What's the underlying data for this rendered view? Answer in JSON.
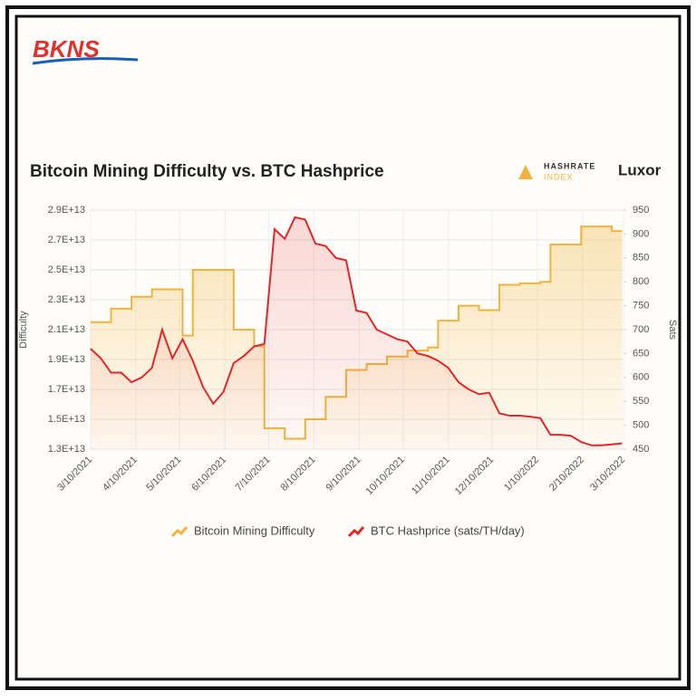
{
  "branding": {
    "logo": "BKNS",
    "partner_top": "HASHRATE",
    "partner_bottom": "INDEX",
    "partner2": "Luxor"
  },
  "chart_data": {
    "type": "line",
    "title": "Bitcoin Mining Difficulty vs. BTC Hashprice",
    "y_label": "Difficulty",
    "y2_label": "Sats",
    "x": [
      "3/10/2021",
      "3/17/2021",
      "3/24/2021",
      "3/31/2021",
      "4/7/2021",
      "4/14/2021",
      "4/21/2021",
      "4/28/2021",
      "5/5/2021",
      "5/12/2021",
      "5/19/2021",
      "5/26/2021",
      "6/2/2021",
      "6/9/2021",
      "6/16/2021",
      "6/23/2021",
      "6/30/2021",
      "7/7/2021",
      "7/14/2021",
      "7/21/2021",
      "7/28/2021",
      "8/4/2021",
      "8/11/2021",
      "8/18/2021",
      "8/25/2021",
      "9/1/2021",
      "9/8/2021",
      "9/15/2021",
      "9/22/2021",
      "9/29/2021",
      "10/6/2021",
      "10/13/2021",
      "10/20/2021",
      "10/27/2021",
      "11/3/2021",
      "11/10/2021",
      "11/17/2021",
      "11/24/2021",
      "12/1/2021",
      "12/8/2021",
      "12/15/2021",
      "12/22/2021",
      "12/29/2021",
      "1/5/2022",
      "1/12/2022",
      "1/19/2022",
      "1/26/2022",
      "2/2/2022",
      "2/9/2022",
      "2/16/2022",
      "2/23/2022",
      "3/2/2022",
      "3/9/2022"
    ],
    "xlim": [
      "3/10/2021",
      "3/10/2022"
    ],
    "xticks": [
      "3/10/2021",
      "4/10/2021",
      "5/10/2021",
      "6/10/2021",
      "7/10/2021",
      "8/10/2021",
      "9/10/2021",
      "10/10/2021",
      "11/10/2021",
      "12/10/2021",
      "1/10/2022",
      "2/10/2022",
      "3/10/2022"
    ],
    "ylim": [
      13000000000000.0,
      29000000000000.0
    ],
    "yticks": [
      {
        "value": 13000000000000.0,
        "label": "1.3E+13"
      },
      {
        "value": 15000000000000.0,
        "label": "1.5E+13"
      },
      {
        "value": 17000000000000.0,
        "label": "1.7E+13"
      },
      {
        "value": 19000000000000.0,
        "label": "1.9E+13"
      },
      {
        "value": 21000000000000.0,
        "label": "2.1E+13"
      },
      {
        "value": 23000000000000.0,
        "label": "2.3E+13"
      },
      {
        "value": 25000000000000.0,
        "label": "2.5E+13"
      },
      {
        "value": 27000000000000.0,
        "label": "2.7E+13"
      },
      {
        "value": 29000000000000.0,
        "label": "2.9E+13"
      }
    ],
    "y2lim": [
      450,
      950
    ],
    "y2ticks": [
      450,
      500,
      550,
      600,
      650,
      700,
      750,
      800,
      850,
      900,
      950
    ],
    "grid": true,
    "series": [
      {
        "name": "Bitcoin Mining Difficulty",
        "color": "#f0b43c",
        "step": true,
        "values": [
          21500000000000.0,
          21500000000000.0,
          22400000000000.0,
          22400000000000.0,
          23200000000000.0,
          23200000000000.0,
          23700000000000.0,
          23700000000000.0,
          23700000000000.0,
          20600000000000.0,
          25000000000000.0,
          25000000000000.0,
          25000000000000.0,
          25000000000000.0,
          21000000000000.0,
          21000000000000.0,
          19900000000000.0,
          14400000000000.0,
          14400000000000.0,
          13700000000000.0,
          13700000000000.0,
          15000000000000.0,
          15000000000000.0,
          16500000000000.0,
          16500000000000.0,
          18300000000000.0,
          18300000000000.0,
          18700000000000.0,
          18700000000000.0,
          19200000000000.0,
          19200000000000.0,
          19600000000000.0,
          19600000000000.0,
          19800000000000.0,
          21600000000000.0,
          21600000000000.0,
          22600000000000.0,
          22600000000000.0,
          22300000000000.0,
          22300000000000.0,
          24000000000000.0,
          24000000000000.0,
          24100000000000.0,
          24100000000000.0,
          24200000000000.0,
          26700000000000.0,
          26700000000000.0,
          26700000000000.0,
          27900000000000.0,
          27900000000000.0,
          27900000000000.0,
          27600000000000.0,
          27600000000000.0
        ]
      },
      {
        "name": "BTC Hashprice (sats/TH/day)",
        "color": "#e0282a",
        "axis": "y2",
        "values": [
          660,
          640,
          610,
          610,
          590,
          600,
          620,
          700,
          640,
          680,
          635,
          580,
          545,
          570,
          630,
          645,
          665,
          670,
          910,
          890,
          935,
          930,
          880,
          875,
          850,
          845,
          740,
          735,
          700,
          690,
          680,
          675,
          650,
          645,
          635,
          620,
          590,
          575,
          565,
          568,
          525,
          520,
          520,
          518,
          515,
          480,
          480,
          478,
          465,
          458,
          458,
          460,
          462
        ]
      }
    ]
  }
}
